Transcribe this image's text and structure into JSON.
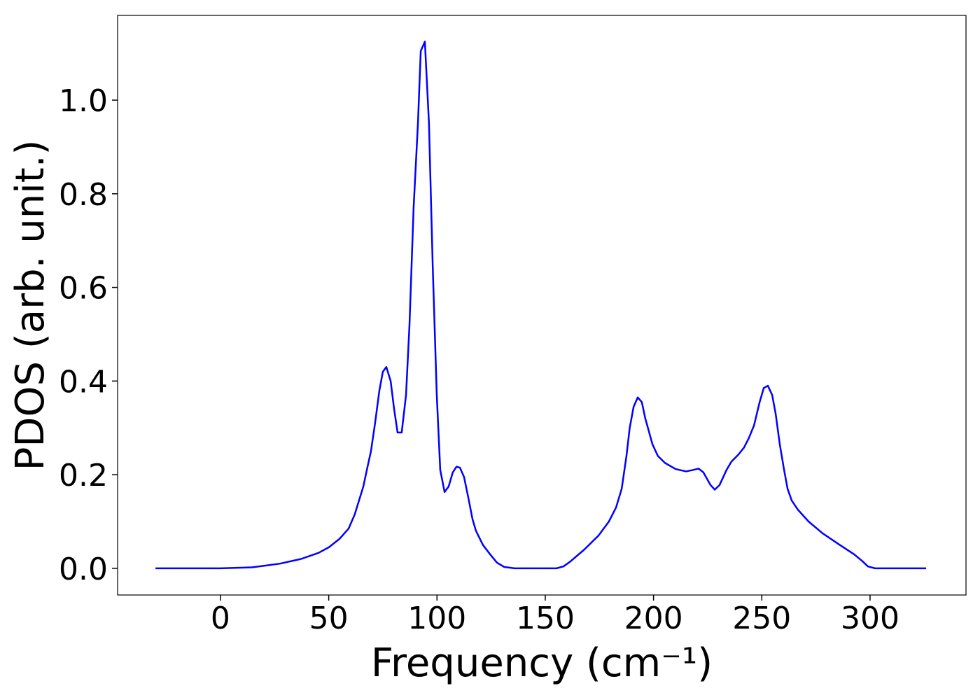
{
  "chart_data": {
    "type": "line",
    "x_label": "Frequency (cm⁻¹)",
    "y_label": "PDOS (arb. unit.)",
    "color": "#0000ff",
    "grid": false,
    "xlim": [
      -47.5,
      344.3
    ],
    "ylim": [
      -0.057,
      1.181
    ],
    "xticks": [
      0,
      50,
      100,
      150,
      200,
      250,
      300
    ],
    "yticks": [
      {
        "value": 0,
        "label": "0.0"
      },
      {
        "value": 0.2,
        "label": "0.2"
      },
      {
        "value": 0.4,
        "label": "0.4"
      },
      {
        "value": 0.6,
        "label": "0.6"
      },
      {
        "value": 0.8,
        "label": "0.8"
      },
      {
        "value": 1.0,
        "label": "1.0"
      }
    ],
    "x": [
      -30,
      0,
      14.5,
      27.5,
      37.2,
      45.3,
      50.1,
      55,
      59.2,
      62,
      64,
      66,
      67.6,
      69.5,
      71.4,
      73.4,
      75,
      76.6,
      78.6,
      80.2,
      81.8,
      83.7,
      85.7,
      87.3,
      89.2,
      91.2,
      92.5,
      94.4,
      96.3,
      98,
      99.9,
      101.5,
      103.5,
      105.4,
      107.3,
      109,
      110.6,
      112.5,
      114.5,
      116.4,
      118,
      121.2,
      124.5,
      127.7,
      131,
      135.8,
      155.2,
      158.4,
      161.7,
      168,
      174.6,
      179.4,
      182.7,
      185.3,
      187.5,
      189,
      190.8,
      192.7,
      194.6,
      196.2,
      199.5,
      202,
      205.3,
      210.2,
      215,
      218.2,
      220.8,
      223,
      226.3,
      228.3,
      230.5,
      233.7,
      236,
      239.2,
      241.8,
      244,
      246.4,
      249,
      250.9,
      252.8,
      254.8,
      256.4,
      258.3,
      260.3,
      261.9,
      263.8,
      266.7,
      271.6,
      278,
      286,
      292.6,
      296.5,
      299,
      302.3,
      325.9
    ],
    "values": [
      0,
      0,
      0.002,
      0.01,
      0.02,
      0.033,
      0.045,
      0.063,
      0.085,
      0.115,
      0.145,
      0.175,
      0.21,
      0.25,
      0.31,
      0.38,
      0.42,
      0.43,
      0.4,
      0.34,
      0.29,
      0.29,
      0.37,
      0.52,
      0.77,
      0.95,
      1.105,
      1.125,
      0.95,
      0.65,
      0.37,
      0.21,
      0.163,
      0.175,
      0.205,
      0.217,
      0.215,
      0.195,
      0.15,
      0.105,
      0.08,
      0.05,
      0.03,
      0.012,
      0.003,
      0,
      0,
      0.004,
      0.015,
      0.04,
      0.07,
      0.1,
      0.13,
      0.17,
      0.24,
      0.3,
      0.345,
      0.365,
      0.355,
      0.32,
      0.265,
      0.24,
      0.225,
      0.212,
      0.207,
      0.21,
      0.213,
      0.205,
      0.178,
      0.168,
      0.178,
      0.21,
      0.228,
      0.243,
      0.258,
      0.278,
      0.305,
      0.355,
      0.385,
      0.39,
      0.37,
      0.33,
      0.265,
      0.21,
      0.17,
      0.145,
      0.125,
      0.1,
      0.075,
      0.05,
      0.03,
      0.015,
      0.004,
      0,
      0
    ]
  }
}
